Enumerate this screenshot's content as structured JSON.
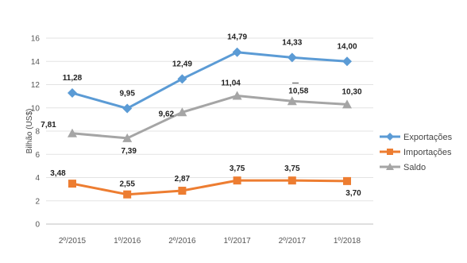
{
  "chart_data": {
    "type": "line",
    "ylabel": "Bilhão (US$)",
    "ylim": [
      0,
      16
    ],
    "yticks": [
      0,
      2,
      4,
      6,
      8,
      10,
      12,
      14,
      16
    ],
    "categories": [
      "2º/2015",
      "1º/2016",
      "2º/2016",
      "1º/2017",
      "2º/2017",
      "1º/2018"
    ],
    "grid": "horizontal",
    "legend": "right",
    "series": [
      {
        "name": "Exportações",
        "color": "#5b9bd5",
        "marker": "diamond",
        "values": [
          11.28,
          9.95,
          12.49,
          14.79,
          14.33,
          14.0
        ],
        "labels": [
          "11,28",
          "9,95",
          "12,49",
          "14,79",
          "14,33",
          "14,00"
        ]
      },
      {
        "name": "Importações",
        "color": "#ed7d31",
        "marker": "square",
        "values": [
          3.48,
          2.55,
          2.87,
          3.75,
          3.75,
          3.7
        ],
        "labels": [
          "3,48",
          "2,55",
          "2,87",
          "3,75",
          "3,75",
          "3,70"
        ]
      },
      {
        "name": "Saldo",
        "color": "#a5a5a5",
        "marker": "triangle",
        "values": [
          7.81,
          7.39,
          9.62,
          11.04,
          10.58,
          10.3
        ],
        "labels": [
          "7,81",
          "7,39",
          "9,62",
          "11,04",
          "10,58",
          "10,30"
        ]
      }
    ]
  }
}
